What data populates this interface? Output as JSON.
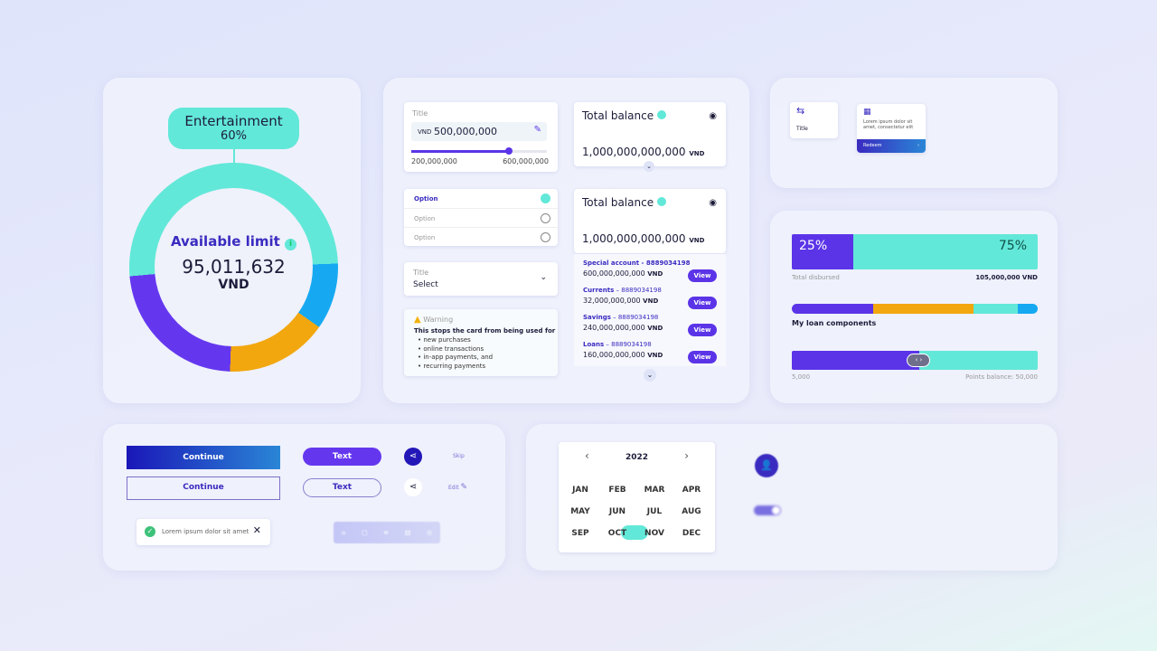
{
  "donut": {
    "category": "Entertainment",
    "percent": "60%",
    "label": "Available limit",
    "amount": "95,011,632",
    "currency": "VND",
    "colors": {
      "teal": "#62e8d8",
      "blue": "#16a9f2",
      "orange": "#f2a70f",
      "purple": "#6437ef"
    }
  },
  "slider": {
    "title": "Title",
    "currency": "VND",
    "value": "500,000,000",
    "min": "200,000,000",
    "max": "600,000,000",
    "fraction": 0.72
  },
  "options": [
    {
      "label": "Option",
      "checked": true
    },
    {
      "label": "Option",
      "checked": false
    },
    {
      "label": "Option",
      "checked": false
    }
  ],
  "select": {
    "title": "Title",
    "value": "Select"
  },
  "warning": {
    "title": "Warning",
    "text": "This stops the card from being used for",
    "items": [
      "new purchases",
      "online transactions",
      "in-app payments, and",
      "recurring payments"
    ]
  },
  "balance": {
    "title": "Total balance",
    "amount": "1,000,000,000,000",
    "currency": "VND"
  },
  "accounts": [
    {
      "name": "Special account - 8889034198",
      "amount": "600,000,000,000",
      "currency": "VND",
      "action": "View"
    },
    {
      "name": "Currents",
      "number": "8889034198",
      "amount": "32,000,000,000",
      "currency": "VND",
      "action": "View"
    },
    {
      "name": "Savings",
      "number": "8889034198",
      "amount": "240,000,000,000",
      "currency": "VND",
      "action": "View"
    },
    {
      "name": "Loans",
      "number": "8889034198",
      "amount": "160,000,000,000",
      "currency": "VND",
      "action": "View"
    }
  ],
  "tiles": {
    "transfer_title": "Title",
    "promo_text": "Lorem ipsum dolor sit amet, consectetur elit",
    "redeem": "Redeem"
  },
  "progress": {
    "left": "25%",
    "right": "75%",
    "left_value": 25,
    "label": "Total disbursed",
    "total": "105,000,000 VND",
    "components_label": "My loan components",
    "components": [
      33,
      41,
      18,
      8
    ],
    "points_min": "5,000",
    "points_label": "Points balance: 50,000",
    "points_fraction": 0.52
  },
  "buttons": {
    "continue": "Continue",
    "continue_outline": "Continue",
    "text": "Text",
    "text_outline": "Text",
    "skip": "Skip",
    "edit": "Edit",
    "toast": "Lorem ipsum dolor sit amet"
  },
  "calendar": {
    "year": "2022",
    "months": [
      "JAN",
      "FEB",
      "MAR",
      "APR",
      "MAY",
      "JUN",
      "JUL",
      "AUG",
      "SEP",
      "OCT",
      "NOV",
      "DEC"
    ],
    "selected": "OCT"
  }
}
